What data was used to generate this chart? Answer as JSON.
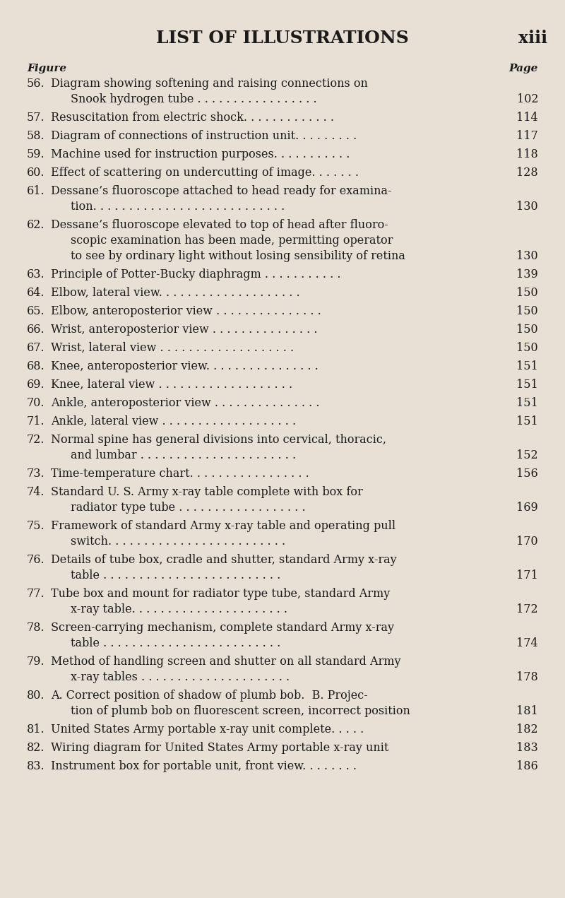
{
  "title": "LIST OF ILLUSTRATIONS",
  "title_right": "xiii",
  "header_left": "Figure",
  "header_right": "Page",
  "bg_color": "#e8e0d5",
  "text_color": "#1a1a1a",
  "entries": [
    {
      "num": "56.",
      "line1": "Diagram showing softening and raising connections on",
      "line2": "Snook hydrogen tube . . . . . . . . . . . . . . . . .",
      "page": "102",
      "indent2": true
    },
    {
      "num": "57.",
      "line1": "Resuscitation from electric shock. . . . . . . . . . . . .",
      "line2": null,
      "page": "114",
      "indent2": false
    },
    {
      "num": "58.",
      "line1": "Diagram of connections of instruction unit. . . . . . . . .",
      "line2": null,
      "page": "117",
      "indent2": false
    },
    {
      "num": "59.",
      "line1": "Machine used for instruction purposes. . . . . . . . . . .",
      "line2": null,
      "page": "118",
      "indent2": false
    },
    {
      "num": "60.",
      "line1": "Effect of scattering on undercutting of image. . . . . . .",
      "line2": null,
      "page": "128",
      "indent2": false
    },
    {
      "num": "61.",
      "line1": "Dessane’s fluoroscope attached to head ready for examina-",
      "line2": "tion. . . . . . . . . . . . . . . . . . . . . . . . . . .",
      "page": "130",
      "indent2": true
    },
    {
      "num": "62.",
      "line1": "Dessane’s fluoroscope elevated to top of head after fluoro-",
      "line2": "scopic examination has been made, permitting operator",
      "line3": "to see by ordinary light without losing sensibility of retina",
      "page": "130",
      "indent2": true,
      "line3page": true
    },
    {
      "num": "63.",
      "line1": "Principle of Potter-Bucky diaphragm . . . . . . . . . . .",
      "line2": null,
      "page": "139",
      "indent2": false
    },
    {
      "num": "64.",
      "line1": "Elbow, lateral view. . . . . . . . . . . . . . . . . . . .",
      "line2": null,
      "page": "150",
      "indent2": false
    },
    {
      "num": "65.",
      "line1": "Elbow, anteroposterior view . . . . . . . . . . . . . . .",
      "line2": null,
      "page": "150",
      "indent2": false
    },
    {
      "num": "66.",
      "line1": "Wrist, anteroposterior view . . . . . . . . . . . . . . .",
      "line2": null,
      "page": "150",
      "indent2": false
    },
    {
      "num": "67.",
      "line1": "Wrist, lateral view . . . . . . . . . . . . . . . . . . .",
      "line2": null,
      "page": "150",
      "indent2": false
    },
    {
      "num": "68.",
      "line1": "Knee, anteroposterior view. . . . . . . . . . . . . . . .",
      "line2": null,
      "page": "151",
      "indent2": false
    },
    {
      "num": "69.",
      "line1": "Knee, lateral view . . . . . . . . . . . . . . . . . . .",
      "line2": null,
      "page": "151",
      "indent2": false
    },
    {
      "num": "70.",
      "line1": "Ankle, anteroposterior view . . . . . . . . . . . . . . .",
      "line2": null,
      "page": "151",
      "indent2": false
    },
    {
      "num": "71.",
      "line1": "Ankle, lateral view . . . . . . . . . . . . . . . . . . .",
      "line2": null,
      "page": "151",
      "indent2": false
    },
    {
      "num": "72.",
      "line1": "Normal spine has general divisions into cervical, thoracic,",
      "line2": "and lumbar . . . . . . . . . . . . . . . . . . . . . .",
      "page": "152",
      "indent2": true
    },
    {
      "num": "73.",
      "line1": "Time-temperature chart. . . . . . . . . . . . . . . . .",
      "line2": null,
      "page": "156",
      "indent2": false
    },
    {
      "num": "74.",
      "line1": "Standard U. S. Army x-ray table complete with box for",
      "line2": "radiator type tube . . . . . . . . . . . . . . . . . .",
      "page": "169",
      "indent2": true
    },
    {
      "num": "75.",
      "line1": "Framework of standard Army x-ray table and operating pull",
      "line2": "switch. . . . . . . . . . . . . . . . . . . . . . . . .",
      "page": "170",
      "indent2": true
    },
    {
      "num": "76.",
      "line1": "Details of tube box, cradle and shutter, standard Army x-ray",
      "line2": "table . . . . . . . . . . . . . . . . . . . . . . . . .",
      "page": "171",
      "indent2": true
    },
    {
      "num": "77.",
      "line1": "Tube box and mount for radiator type tube, standard Army",
      "line2": "x-ray table. . . . . . . . . . . . . . . . . . . . . .",
      "page": "172",
      "indent2": true
    },
    {
      "num": "78.",
      "line1": "Screen-carrying mechanism, complete standard Army x-ray",
      "line2": "table . . . . . . . . . . . . . . . . . . . . . . . . .",
      "page": "174",
      "indent2": true
    },
    {
      "num": "79.",
      "line1": "Method of handling screen and shutter on all standard Army",
      "line2": "x-ray tables . . . . . . . . . . . . . . . . . . . . .",
      "page": "178",
      "indent2": true
    },
    {
      "num": "80.",
      "line1": "A. Correct position of shadow of plumb bob.  B. Projec-",
      "line2": "tion of plumb bob on fluorescent screen, incorrect position",
      "page": "181",
      "indent2": true,
      "line2page": true
    },
    {
      "num": "81.",
      "line1": "United States Army portable x-ray unit complete. . . . .",
      "line2": null,
      "page": "182",
      "indent2": false
    },
    {
      "num": "82.",
      "line1": "Wiring diagram for United States Army portable x-ray unit",
      "line2": null,
      "page": "183",
      "indent2": false
    },
    {
      "num": "83.",
      "line1": "Instrument box for portable unit, front view. . . . . . . .",
      "line2": null,
      "page": "186",
      "indent2": false
    }
  ]
}
